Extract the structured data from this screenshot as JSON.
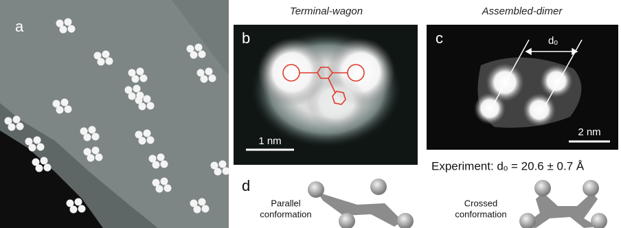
{
  "panels": {
    "a": {
      "label": "a"
    },
    "b": {
      "label": "b",
      "title": "Terminal-wagon",
      "scale_bar": "1 nm"
    },
    "c": {
      "label": "c",
      "title": "Assembled-dimer",
      "scale_bar": "2 nm",
      "distance_label": "dₒ",
      "experiment": "Experiment: dₒ = 20.6 ± 0.7 Å"
    },
    "d": {
      "label": "d",
      "parallel": [
        "Parallel",
        "conformation"
      ],
      "crossed": [
        "Crossed",
        "conformation"
      ]
    }
  }
}
